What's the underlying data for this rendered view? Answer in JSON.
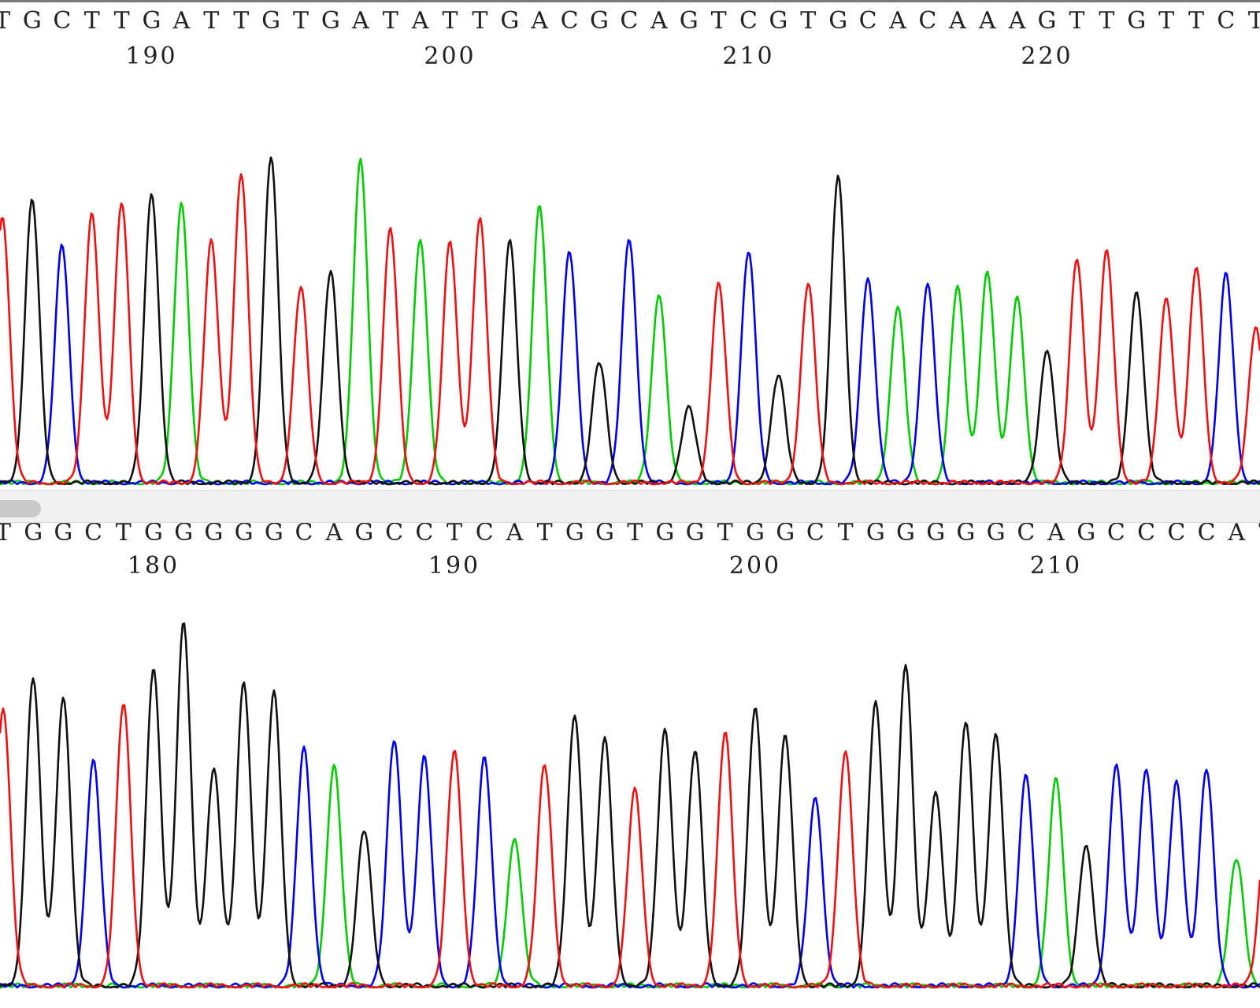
{
  "colors": {
    "A": "#00cc00",
    "C": "#0000ee",
    "G": "#111111",
    "T": "#ee1111",
    "scrollbar_track": "#f1f1f1",
    "scrollbar_thumb": "#c9c9c9"
  },
  "chart_data": [
    {
      "type": "line",
      "title": "",
      "xlabel": "",
      "ylabel": "",
      "legend": "none",
      "grid": false,
      "base_positions": {
        "start": 185,
        "end": 225
      },
      "sequence": "TGCTTGATTGTGATATTGACGCAGTCGTGCACAAAGTTGTTCT",
      "position_ticks": [
        190,
        200,
        210,
        220
      ],
      "series": [
        {
          "base": "T",
          "channel": "T"
        },
        {
          "base": "G",
          "channel": "G"
        },
        {
          "base": "C",
          "channel": "C"
        },
        {
          "base": "A",
          "channel": "A"
        }
      ],
      "peaks": [
        {
          "pos": 185,
          "base": "T",
          "height": 0.82
        },
        {
          "pos": 186,
          "base": "G",
          "height": 0.87
        },
        {
          "pos": 187,
          "base": "C",
          "height": 0.73
        },
        {
          "pos": 188,
          "base": "T",
          "height": 0.83
        },
        {
          "pos": 189,
          "base": "T",
          "height": 0.86
        },
        {
          "pos": 190,
          "base": "G",
          "height": 0.89
        },
        {
          "pos": 191,
          "base": "A",
          "height": 0.86
        },
        {
          "pos": 192,
          "base": "T",
          "height": 0.74
        },
        {
          "pos": 193,
          "base": "T",
          "height": 0.95
        },
        {
          "pos": 194,
          "base": "G",
          "height": 1.0
        },
        {
          "pos": 195,
          "base": "T",
          "height": 0.6
        },
        {
          "pos": 196,
          "base": "G",
          "height": 0.65
        },
        {
          "pos": 197,
          "base": "A",
          "height": 0.99
        },
        {
          "pos": 198,
          "base": "T",
          "height": 0.78
        },
        {
          "pos": 199,
          "base": "A",
          "height": 0.75
        },
        {
          "pos": 200,
          "base": "T",
          "height": 0.74
        },
        {
          "pos": 201,
          "base": "T",
          "height": 0.81
        },
        {
          "pos": 202,
          "base": "G",
          "height": 0.74
        },
        {
          "pos": 203,
          "base": "A",
          "height": 0.85
        },
        {
          "pos": 204,
          "base": "C",
          "height": 0.71
        },
        {
          "pos": 205,
          "base": "G",
          "height": 0.37
        },
        {
          "pos": 206,
          "base": "C",
          "height": 0.75
        },
        {
          "pos": 207,
          "base": "A",
          "height": 0.58
        },
        {
          "pos": 208,
          "base": "G",
          "height": 0.23
        },
        {
          "pos": 209,
          "base": "T",
          "height": 0.61
        },
        {
          "pos": 210,
          "base": "C",
          "height": 0.71
        },
        {
          "pos": 211,
          "base": "G",
          "height": 0.33
        },
        {
          "pos": 212,
          "base": "T",
          "height": 0.61
        },
        {
          "pos": 213,
          "base": "G",
          "height": 0.94
        },
        {
          "pos": 214,
          "base": "C",
          "height": 0.63
        },
        {
          "pos": 215,
          "base": "A",
          "height": 0.54
        },
        {
          "pos": 216,
          "base": "C",
          "height": 0.61
        },
        {
          "pos": 217,
          "base": "A",
          "height": 0.6
        },
        {
          "pos": 218,
          "base": "A",
          "height": 0.65
        },
        {
          "pos": 219,
          "base": "A",
          "height": 0.57
        },
        {
          "pos": 220,
          "base": "G",
          "height": 0.41
        },
        {
          "pos": 221,
          "base": "T",
          "height": 0.69
        },
        {
          "pos": 222,
          "base": "T",
          "height": 0.71
        },
        {
          "pos": 223,
          "base": "G",
          "height": 0.59
        },
        {
          "pos": 224,
          "base": "T",
          "height": 0.57
        },
        {
          "pos": 225,
          "base": "T",
          "height": 0.66
        },
        {
          "pos": 226,
          "base": "C",
          "height": 0.64
        },
        {
          "pos": 227,
          "base": "T",
          "height": 0.48
        }
      ]
    },
    {
      "type": "line",
      "title": "",
      "xlabel": "",
      "ylabel": "",
      "legend": "none",
      "grid": false,
      "base_positions": {
        "start": 175,
        "end": 215
      },
      "sequence": "TGGCTGGGGGCAGCCTCATGGTGGTGGCTGGGGGCAGCCCCAT",
      "position_ticks": [
        180,
        190,
        200,
        210
      ],
      "series": [
        {
          "base": "T",
          "channel": "T"
        },
        {
          "base": "G",
          "channel": "G"
        },
        {
          "base": "C",
          "channel": "C"
        },
        {
          "base": "A",
          "channel": "A"
        }
      ],
      "peaks": [
        {
          "pos": 175,
          "base": "T",
          "height": 0.77
        },
        {
          "pos": 176,
          "base": "G",
          "height": 0.85
        },
        {
          "pos": 177,
          "base": "G",
          "height": 0.8
        },
        {
          "pos": 178,
          "base": "C",
          "height": 0.62
        },
        {
          "pos": 179,
          "base": "T",
          "height": 0.78
        },
        {
          "pos": 180,
          "base": "G",
          "height": 0.88
        },
        {
          "pos": 181,
          "base": "G",
          "height": 1.0
        },
        {
          "pos": 182,
          "base": "G",
          "height": 0.6
        },
        {
          "pos": 183,
          "base": "G",
          "height": 0.84
        },
        {
          "pos": 184,
          "base": "G",
          "height": 0.81
        },
        {
          "pos": 185,
          "base": "C",
          "height": 0.66
        },
        {
          "pos": 186,
          "base": "A",
          "height": 0.61
        },
        {
          "pos": 187,
          "base": "G",
          "height": 0.43
        },
        {
          "pos": 188,
          "base": "C",
          "height": 0.68
        },
        {
          "pos": 189,
          "base": "C",
          "height": 0.63
        },
        {
          "pos": 190,
          "base": "T",
          "height": 0.65
        },
        {
          "pos": 191,
          "base": "C",
          "height": 0.63
        },
        {
          "pos": 192,
          "base": "A",
          "height": 0.41
        },
        {
          "pos": 193,
          "base": "T",
          "height": 0.61
        },
        {
          "pos": 194,
          "base": "G",
          "height": 0.75
        },
        {
          "pos": 195,
          "base": "G",
          "height": 0.68
        },
        {
          "pos": 196,
          "base": "T",
          "height": 0.54
        },
        {
          "pos": 197,
          "base": "G",
          "height": 0.71
        },
        {
          "pos": 198,
          "base": "G",
          "height": 0.65
        },
        {
          "pos": 199,
          "base": "T",
          "height": 0.7
        },
        {
          "pos": 200,
          "base": "G",
          "height": 0.77
        },
        {
          "pos": 201,
          "base": "G",
          "height": 0.69
        },
        {
          "pos": 202,
          "base": "C",
          "height": 0.52
        },
        {
          "pos": 203,
          "base": "T",
          "height": 0.65
        },
        {
          "pos": 204,
          "base": "G",
          "height": 0.78
        },
        {
          "pos": 205,
          "base": "G",
          "height": 0.89
        },
        {
          "pos": 206,
          "base": "G",
          "height": 0.53
        },
        {
          "pos": 207,
          "base": "G",
          "height": 0.73
        },
        {
          "pos": 208,
          "base": "G",
          "height": 0.7
        },
        {
          "pos": 209,
          "base": "C",
          "height": 0.58
        },
        {
          "pos": 210,
          "base": "A",
          "height": 0.57
        },
        {
          "pos": 211,
          "base": "G",
          "height": 0.39
        },
        {
          "pos": 212,
          "base": "C",
          "height": 0.61
        },
        {
          "pos": 213,
          "base": "C",
          "height": 0.6
        },
        {
          "pos": 214,
          "base": "C",
          "height": 0.56
        },
        {
          "pos": 215,
          "base": "C",
          "height": 0.6
        },
        {
          "pos": 216,
          "base": "A",
          "height": 0.35
        },
        {
          "pos": 217,
          "base": "T",
          "height": 0.45
        }
      ]
    }
  ]
}
